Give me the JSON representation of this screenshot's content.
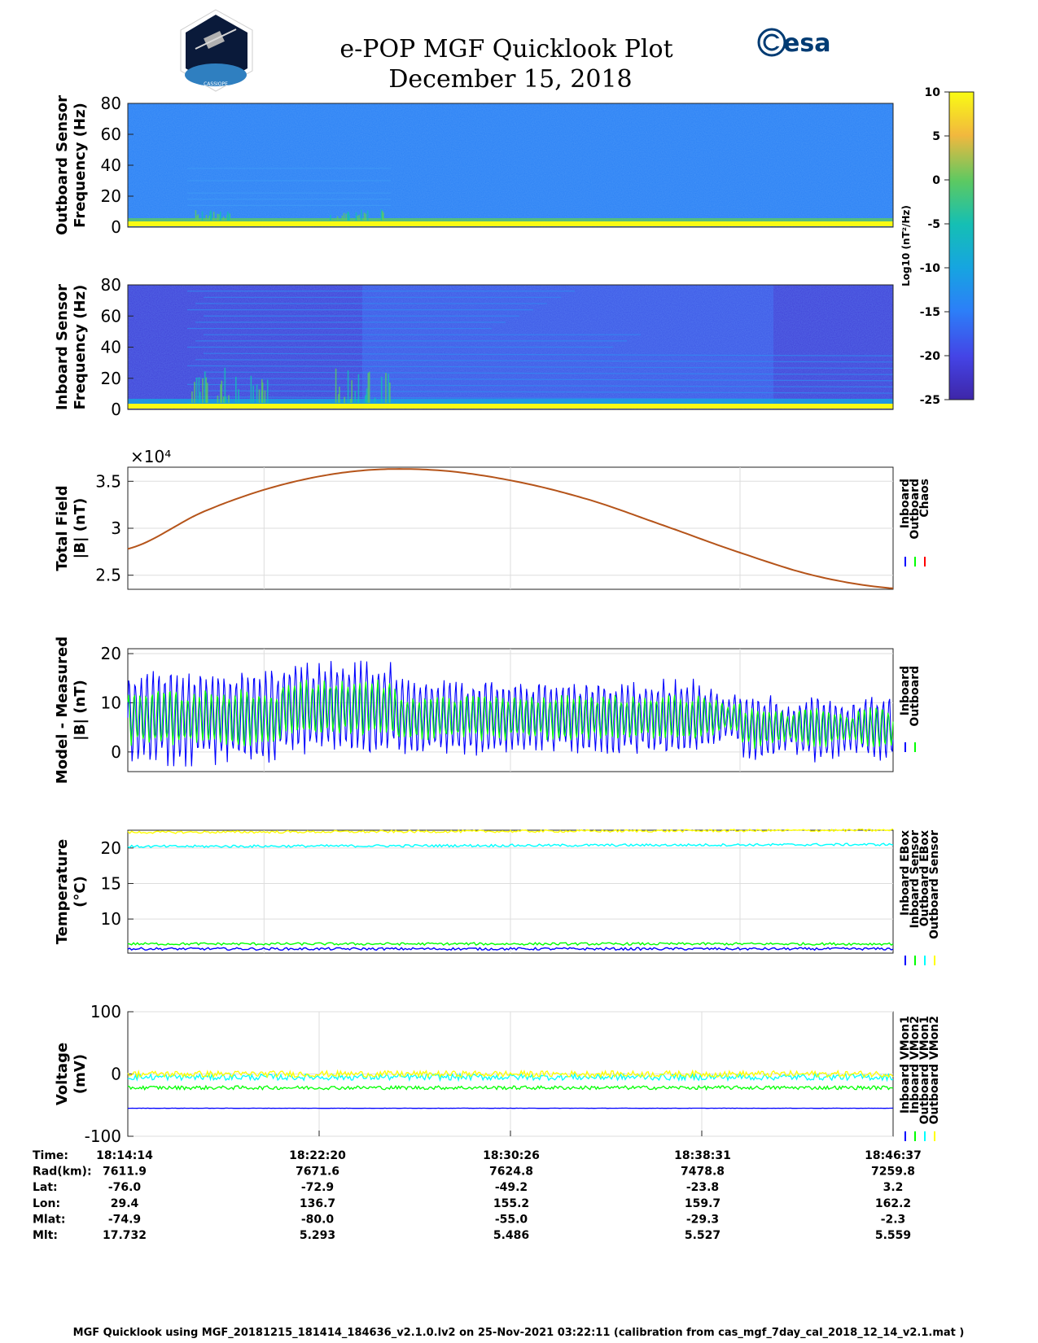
{
  "header": {
    "title": "e-POP MGF Quicklook Plot",
    "date": "December 15, 2018",
    "logo_left": "CASSIOPE",
    "logo_right": "esa"
  },
  "colorbar": {
    "ticks": [
      10,
      5,
      0,
      -5,
      -10,
      -15,
      -20,
      -25
    ],
    "label": "Log10 (nT²/Hz)"
  },
  "chart_data": [
    {
      "type": "heatmap",
      "id": "outboard-spectrogram",
      "ylabel": [
        "Outboard Sensor",
        "Frequency (Hz)"
      ],
      "yticks": [
        0,
        20,
        40,
        60,
        80
      ],
      "ylim": [
        0,
        80
      ],
      "zlim": [
        -25,
        10
      ]
    },
    {
      "type": "heatmap",
      "id": "inboard-spectrogram",
      "ylabel": [
        "Inboard Sensor",
        "Frequency (Hz)"
      ],
      "yticks": [
        0,
        20,
        40,
        60,
        80
      ],
      "ylim": [
        0,
        80
      ],
      "zlim": [
        -25,
        10
      ]
    },
    {
      "type": "line",
      "id": "total-field",
      "ylabel": [
        "Total Field",
        "|B| (nT)"
      ],
      "yticks": [
        2.5,
        3,
        3.5
      ],
      "ylim": [
        2.35,
        3.65
      ],
      "exponent_label": "×10⁴",
      "series": [
        {
          "name": "Inboard",
          "color": "#0000ff"
        },
        {
          "name": "Outboard",
          "color": "#00ff00"
        },
        {
          "name": "Chaos",
          "color": "#ff0000"
        }
      ],
      "x": [
        0,
        0.1,
        0.2,
        0.3,
        0.4,
        0.5,
        0.6,
        0.7,
        0.8,
        0.9,
        1.0
      ],
      "values": [
        2.78,
        3.18,
        3.46,
        3.61,
        3.62,
        3.51,
        3.31,
        3.03,
        2.74,
        2.49,
        2.36
      ]
    },
    {
      "type": "line",
      "id": "model-measured",
      "ylabel": [
        "Model - Measured",
        "|B| (nT)"
      ],
      "yticks": [
        0,
        10,
        20
      ],
      "ylim": [
        -4,
        21
      ],
      "series": [
        {
          "name": "Inboard",
          "color": "#0000ff",
          "center": 7,
          "amplitude": 10
        },
        {
          "name": "Outboard",
          "color": "#00ff00",
          "center": 7,
          "amplitude": 6
        }
      ]
    },
    {
      "type": "line",
      "id": "temperature",
      "ylabel": [
        "Temperature",
        "(°C)"
      ],
      "yticks": [
        10,
        15,
        20
      ],
      "ylim": [
        5.2,
        22.5
      ],
      "series": [
        {
          "name": "Inboard EBox",
          "color": "#0000ff",
          "level": 5.8
        },
        {
          "name": "Inboard Sensor",
          "color": "#00ff00",
          "level": 6.5
        },
        {
          "name": "Outboard EBox",
          "color": "#00ffff",
          "level": 20.2
        },
        {
          "name": "Outboard Sensor",
          "color": "#ffff00",
          "level": 22.2
        }
      ]
    },
    {
      "type": "line",
      "id": "voltage",
      "ylabel": [
        "Voltage",
        "(mV)"
      ],
      "yticks": [
        -100,
        0,
        100
      ],
      "ylim": [
        -100,
        100
      ],
      "series": [
        {
          "name": "Inboard VMon1",
          "color": "#0000ff",
          "level": -55
        },
        {
          "name": "Inboard VMon2",
          "color": "#00ff00",
          "level": -22
        },
        {
          "name": "Outboard VMon1",
          "color": "#00ffff",
          "level": -5
        },
        {
          "name": "Outboard VMon2",
          "color": "#ffff00",
          "level": 0
        }
      ]
    }
  ],
  "xaxis": {
    "fractions": [
      0,
      0.25,
      0.5,
      0.75,
      1.0
    ],
    "rows": [
      {
        "label": "Time:",
        "values": [
          "18:14:14",
          "18:22:20",
          "18:30:26",
          "18:38:31",
          "18:46:37"
        ]
      },
      {
        "label": "Rad(km):",
        "values": [
          "7611.9",
          "7671.6",
          "7624.8",
          "7478.8",
          "7259.8"
        ]
      },
      {
        "label": "Lat:",
        "values": [
          "-76.0",
          "-72.9",
          "-49.2",
          "-23.8",
          "3.2"
        ]
      },
      {
        "label": "Lon:",
        "values": [
          "29.4",
          "136.7",
          "155.2",
          "159.7",
          "162.2"
        ]
      },
      {
        "label": "Mlat:",
        "values": [
          "-74.9",
          "-80.0",
          "-55.0",
          "-29.3",
          "-2.3"
        ]
      },
      {
        "label": "Mlt:",
        "values": [
          "17.732",
          "5.293",
          "5.486",
          "5.527",
          "5.559"
        ]
      }
    ]
  },
  "footer": "MGF Quicklook using MGF_20181215_181414_184636_v2.1.0.lv2 on 25-Nov-2021 03:22:11 (calibration from cas_mgf_7day_cal_2018_12_14_v2.1.mat )"
}
